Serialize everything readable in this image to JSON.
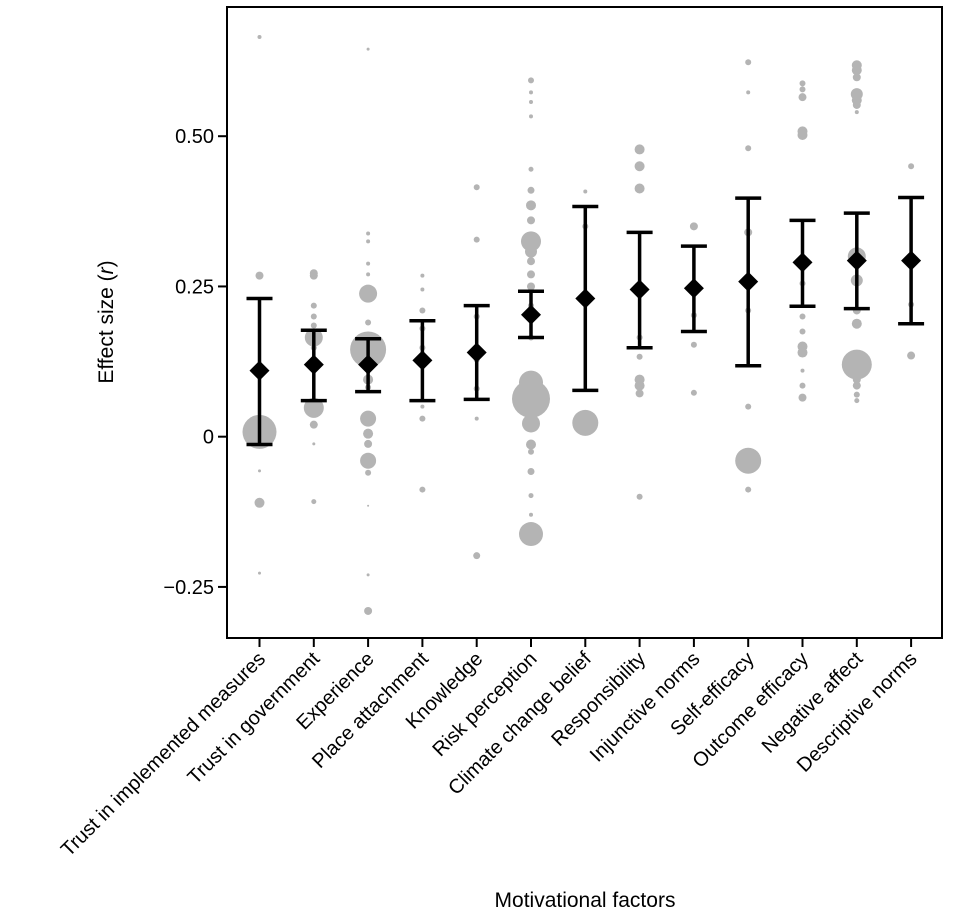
{
  "colors": {
    "point": "#b4b4b4",
    "mean": "#000000",
    "axis": "#000000"
  },
  "chart_data": {
    "type": "scatter",
    "xlabel": "Motivational factors",
    "ylabel": "Effect size (r)",
    "ylim": [
      -0.335,
      0.715
    ],
    "yticks": [
      {
        "value": -0.25,
        "label": "−0.25"
      },
      {
        "value": 0,
        "label": "0"
      },
      {
        "value": 0.25,
        "label": "0.25"
      },
      {
        "value": 0.5,
        "label": "0.50"
      }
    ],
    "grid": false,
    "legend": "none",
    "categories": [
      "Trust in implemented measures",
      "Trust in government",
      "Experience",
      "Place attachment",
      "Knowledge",
      "Risk perception",
      "Climate change belief",
      "Responsibility",
      "Injunctive norms",
      "Self-efficacy",
      "Outcome efficacy",
      "Negative affect",
      "Descriptive norms"
    ],
    "summary": [
      {
        "mean": 0.11,
        "ci": [
          -0.013,
          0.23
        ]
      },
      {
        "mean": 0.12,
        "ci": [
          0.06,
          0.177
        ]
      },
      {
        "mean": 0.12,
        "ci": [
          0.075,
          0.163
        ]
      },
      {
        "mean": 0.127,
        "ci": [
          0.06,
          0.193
        ]
      },
      {
        "mean": 0.14,
        "ci": [
          0.062,
          0.218
        ]
      },
      {
        "mean": 0.203,
        "ci": [
          0.165,
          0.242
        ]
      },
      {
        "mean": 0.23,
        "ci": [
          0.077,
          0.383
        ]
      },
      {
        "mean": 0.245,
        "ci": [
          0.148,
          0.34
        ]
      },
      {
        "mean": 0.247,
        "ci": [
          0.175,
          0.317
        ]
      },
      {
        "mean": 0.258,
        "ci": [
          0.118,
          0.397
        ]
      },
      {
        "mean": 0.29,
        "ci": [
          0.217,
          0.36
        ]
      },
      {
        "mean": 0.293,
        "ci": [
          0.213,
          0.372
        ]
      },
      {
        "mean": 0.293,
        "ci": [
          0.188,
          0.398
        ]
      }
    ],
    "studies": [
      {
        "category": 0,
        "values": [
          0.665,
          0.268,
          0.008,
          -0.11,
          -0.057,
          -0.227,
          0.03
        ],
        "sizes": [
          2,
          4,
          17,
          5,
          1.5,
          1.5,
          3
        ]
      },
      {
        "category": 1,
        "values": [
          0.272,
          0.268,
          0.218,
          0.2,
          0.185,
          0.165,
          0.148,
          0.048,
          0.02,
          -0.012,
          -0.108
        ],
        "sizes": [
          4,
          4,
          3,
          3,
          3,
          9,
          3,
          10,
          4,
          1.5,
          2.5
        ]
      },
      {
        "category": 2,
        "values": [
          0.645,
          0.338,
          0.325,
          0.288,
          0.27,
          0.238,
          0.19,
          0.145,
          0.095,
          0.082,
          0.03,
          0.005,
          -0.012,
          -0.04,
          -0.06,
          -0.115,
          -0.23,
          -0.29
        ],
        "sizes": [
          1.5,
          2,
          2,
          2,
          2,
          9,
          3,
          18,
          5,
          3,
          8,
          5,
          4,
          8,
          3,
          1,
          1.5,
          4
        ]
      },
      {
        "category": 3,
        "values": [
          0.268,
          0.245,
          0.21,
          0.18,
          0.148,
          0.05,
          0.03,
          -0.088
        ],
        "sizes": [
          2,
          2,
          3,
          3,
          3,
          2,
          3,
          3
        ]
      },
      {
        "category": 4,
        "values": [
          0.415,
          0.328,
          0.2,
          0.128,
          0.08,
          0.03,
          -0.198
        ],
        "sizes": [
          3,
          3,
          3,
          3,
          3,
          2,
          3.5
        ]
      },
      {
        "category": 5,
        "values": [
          0.593,
          0.573,
          0.557,
          0.533,
          0.445,
          0.41,
          0.385,
          0.36,
          0.33,
          0.325,
          0.308,
          0.292,
          0.27,
          0.25,
          0.218,
          0.165,
          0.09,
          0.085,
          0.07,
          0.063,
          0.042,
          0.022,
          -0.013,
          -0.025,
          -0.058,
          -0.098,
          -0.13,
          -0.162
        ],
        "sizes": [
          3,
          2,
          2,
          2,
          2.5,
          3.5,
          5,
          4,
          6,
          10,
          6,
          4,
          4,
          4,
          3,
          3,
          12,
          10,
          12,
          19,
          8,
          9,
          5,
          3,
          3.5,
          2.5,
          2,
          12
        ]
      },
      {
        "category": 6,
        "values": [
          0.408,
          0.35,
          0.023
        ],
        "sizes": [
          2,
          3,
          13
        ]
      },
      {
        "category": 7,
        "values": [
          0.478,
          0.45,
          0.413,
          0.165,
          0.133,
          0.095,
          0.085,
          0.072,
          -0.1
        ],
        "sizes": [
          5,
          5,
          5,
          3,
          3,
          5,
          5,
          4,
          3
        ]
      },
      {
        "category": 8,
        "values": [
          0.35,
          0.202,
          0.153,
          0.073
        ],
        "sizes": [
          4,
          3,
          3,
          3
        ]
      },
      {
        "category": 9,
        "values": [
          0.623,
          0.573,
          0.48,
          0.34,
          0.21,
          0.05,
          -0.04,
          -0.088
        ],
        "sizes": [
          3,
          2,
          3,
          4,
          3,
          3,
          13,
          3
        ]
      },
      {
        "category": 10,
        "values": [
          0.588,
          0.578,
          0.565,
          0.508,
          0.502,
          0.255,
          0.2,
          0.175,
          0.15,
          0.14,
          0.11,
          0.085,
          0.065
        ],
        "sizes": [
          3,
          3,
          4,
          5,
          5,
          3,
          3,
          3,
          5,
          5,
          2,
          3,
          4
        ]
      },
      {
        "category": 11,
        "values": [
          0.618,
          0.61,
          0.598,
          0.57,
          0.56,
          0.552,
          0.54,
          0.3,
          0.26,
          0.21,
          0.188,
          0.12,
          0.095,
          0.085,
          0.07,
          0.06
        ],
        "sizes": [
          5,
          5,
          4,
          6,
          5,
          4,
          2,
          9,
          6,
          4,
          5,
          15,
          4,
          4,
          3,
          2.5
        ]
      },
      {
        "category": 12,
        "values": [
          0.45,
          0.293,
          0.22,
          0.135
        ],
        "sizes": [
          3,
          6,
          3,
          4
        ]
      }
    ]
  }
}
